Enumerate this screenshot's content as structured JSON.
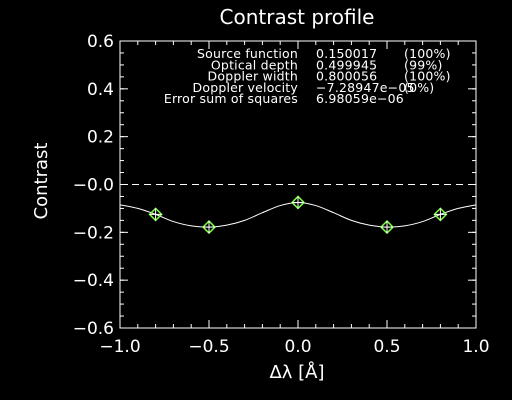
{
  "chart_data": {
    "type": "line",
    "title": "Contrast profile",
    "xlabel": "Δλ [Å]",
    "ylabel": "Contrast",
    "xlim": [
      -1.0,
      1.0
    ],
    "ylim": [
      -0.6,
      0.6
    ],
    "xticks": [
      "−1.0",
      "−0.5",
      "0.0",
      "0.5",
      "1.0"
    ],
    "yticks": [
      "−0.6",
      "−0.4",
      "−0.2",
      "−0.0",
      "0.2",
      "0.4",
      "0.6"
    ],
    "xtick_values": [
      -1.0,
      -0.5,
      0.0,
      0.5,
      1.0
    ],
    "ytick_values": [
      -0.6,
      -0.4,
      -0.2,
      0.0,
      0.2,
      0.4,
      0.6
    ],
    "zero_line": {
      "y": 0.0,
      "style": "dashed"
    },
    "fit_curve": {
      "x": [
        -1.0,
        -0.9,
        -0.8,
        -0.7,
        -0.6,
        -0.5,
        -0.4,
        -0.3,
        -0.2,
        -0.1,
        0.0,
        0.1,
        0.2,
        0.3,
        0.4,
        0.5,
        0.6,
        0.7,
        0.8,
        0.9,
        1.0
      ],
      "y": [
        -0.085,
        -0.1,
        -0.125,
        -0.155,
        -0.173,
        -0.178,
        -0.17,
        -0.15,
        -0.118,
        -0.088,
        -0.075,
        -0.088,
        -0.118,
        -0.15,
        -0.17,
        -0.178,
        -0.173,
        -0.155,
        -0.125,
        -0.1,
        -0.085
      ]
    },
    "observed_points": {
      "x": [
        -0.8,
        -0.5,
        0.0,
        0.5,
        0.8
      ],
      "y": [
        -0.125,
        -0.178,
        -0.075,
        -0.178,
        -0.125
      ]
    },
    "colors": {
      "background": "#000000",
      "foreground": "#ffffff",
      "marker": "#7dff4a"
    },
    "fit_info": [
      {
        "label": "Source function",
        "value": "0.150017",
        "pct": "(100%)"
      },
      {
        "label": "Optical depth",
        "value": "0.499945",
        "pct": "(99%)"
      },
      {
        "label": "Doppler width",
        "value": "0.800056",
        "pct": "(100%)"
      },
      {
        "label": "Doppler velocity",
        "value": "−7.28947e−05",
        "pct": "(0%)"
      },
      {
        "label": "Error sum of squares",
        "value": "6.98059e−06",
        "pct": ""
      }
    ]
  }
}
